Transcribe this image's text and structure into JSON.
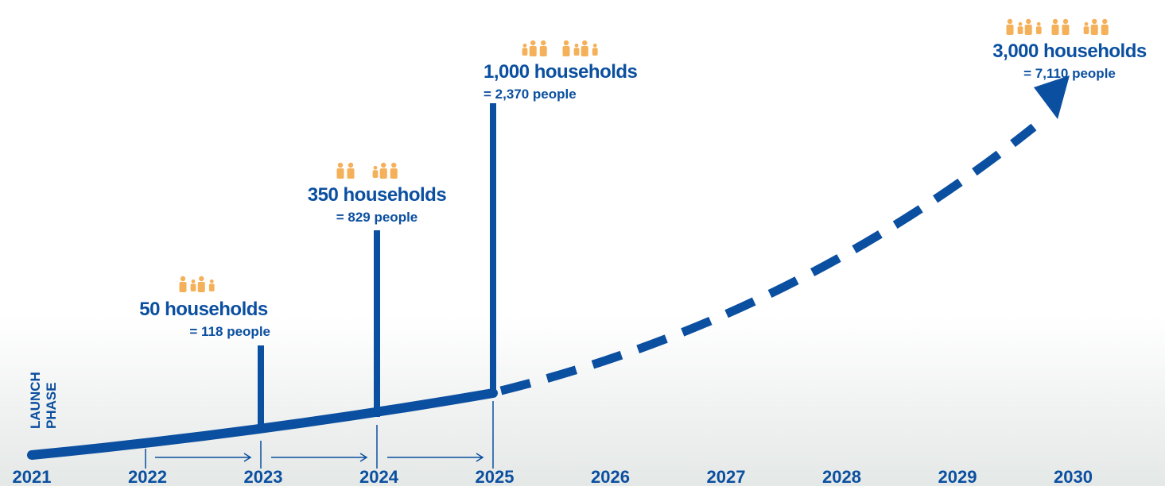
{
  "launch": [
    "LAUNCH",
    "PHASE"
  ],
  "years": [
    "2021",
    "2022",
    "2023",
    "2024",
    "2025",
    "2026",
    "2027",
    "2028",
    "2029",
    "2030"
  ],
  "milestones": [
    {
      "households": "50 households",
      "people": "= 118 people"
    },
    {
      "households": "350 households",
      "people": "= 829 people"
    },
    {
      "households": "1,000 households",
      "people": "= 2,370 people"
    },
    {
      "households": "3,000 households",
      "people": "= 7,110 people"
    }
  ]
}
